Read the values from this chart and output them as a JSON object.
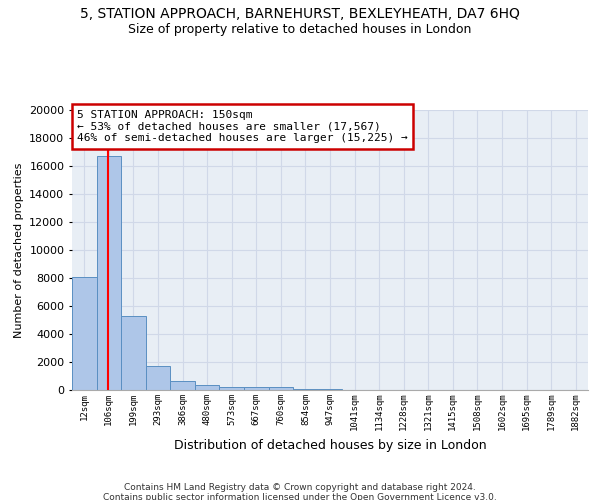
{
  "title": "5, STATION APPROACH, BARNEHURST, BEXLEYHEATH, DA7 6HQ",
  "subtitle": "Size of property relative to detached houses in London",
  "xlabel": "Distribution of detached houses by size in London",
  "ylabel": "Number of detached properties",
  "bin_labels": [
    "12sqm",
    "106sqm",
    "199sqm",
    "293sqm",
    "386sqm",
    "480sqm",
    "573sqm",
    "667sqm",
    "760sqm",
    "854sqm",
    "947sqm",
    "1041sqm",
    "1134sqm",
    "1228sqm",
    "1321sqm",
    "1415sqm",
    "1508sqm",
    "1602sqm",
    "1695sqm",
    "1789sqm",
    "1882sqm"
  ],
  "bar_heights": [
    8100,
    16700,
    5300,
    1750,
    650,
    350,
    250,
    200,
    200,
    100,
    50,
    30,
    20,
    15,
    10,
    8,
    6,
    5,
    4,
    3,
    2
  ],
  "bar_color": "#aec6e8",
  "bar_edgecolor": "#5a8fc2",
  "grid_color": "#d0d8e8",
  "background_color": "#e8eef5",
  "annotation_text_line1": "5 STATION APPROACH: 150sqm",
  "annotation_text_line2": "← 53% of detached houses are smaller (17,567)",
  "annotation_text_line3": "46% of semi-detached houses are larger (15,225) →",
  "annotation_box_color": "#ffffff",
  "annotation_border_color": "#cc0000",
  "ylim": [
    0,
    20000
  ],
  "yticks": [
    0,
    2000,
    4000,
    6000,
    8000,
    10000,
    12000,
    14000,
    16000,
    18000,
    20000
  ],
  "footer_line1": "Contains HM Land Registry data © Crown copyright and database right 2024.",
  "footer_line2": "Contains public sector information licensed under the Open Government Licence v3.0.",
  "title_fontsize": 10,
  "subtitle_fontsize": 9,
  "annotation_fontsize": 8,
  "xlabel_fontsize": 9,
  "ylabel_fontsize": 8,
  "footer_fontsize": 6.5,
  "ytick_fontsize": 8,
  "xtick_fontsize": 6.5
}
